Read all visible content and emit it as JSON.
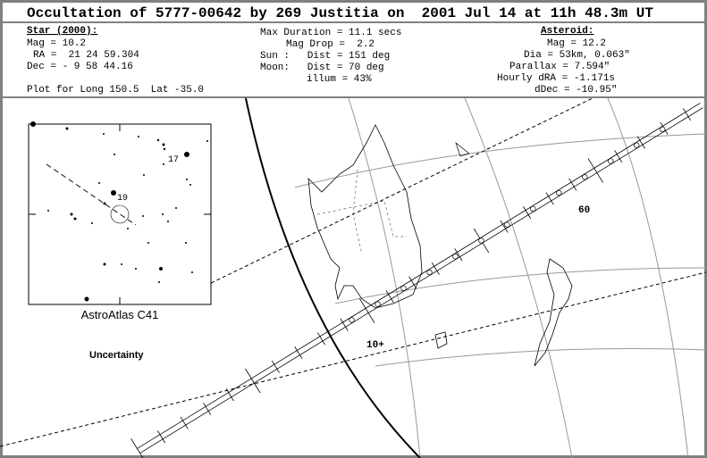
{
  "header": {
    "title": "Occultation of 5777-00642 by 269 Justitia on  2001 Jul 14 at 11h 48.3m UT",
    "star": {
      "heading": "Star (2000):",
      "lines": [
        "Mag = 10.2",
        "RA =  21 24 59.304",
        "Dec = - 9 58 44.16"
      ]
    },
    "event": {
      "lines": [
        "Max Duration = 11.1 secs",
        "Mag Drop =  2.2",
        "Sun :   Dist = 151 deg",
        "Moon:   Dist = 70 deg",
        "illum = 43%"
      ]
    },
    "asteroid": {
      "heading": "Asteroid:",
      "lines": [
        "Mag = 12.2",
        "Dia = 53km, 0.063\"",
        "Parallax = 7.594\"",
        "Hourly dRA = -1.171s",
        "dDec = -10.95\""
      ]
    },
    "plot_note": "Plot for Long 150.5  Lat -35.0"
  },
  "map": {
    "altitude_label_60": "60",
    "altitude_label_10": "10+",
    "uncertainty_label": "Uncertainty"
  },
  "inset": {
    "caption": "AstroAtlas C41",
    "star_labels": [
      "17",
      "19"
    ]
  }
}
